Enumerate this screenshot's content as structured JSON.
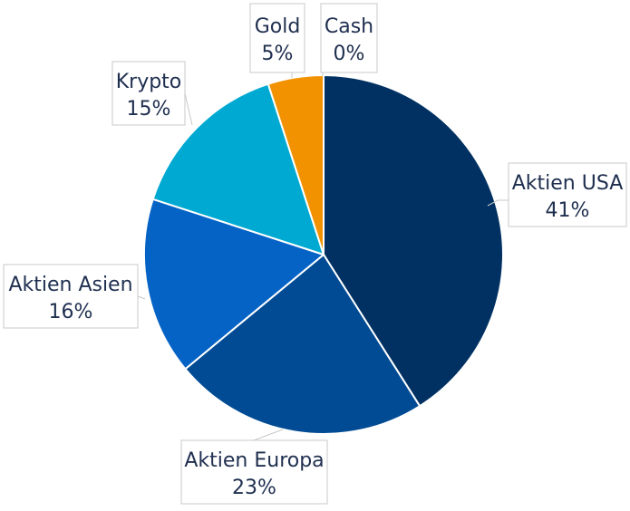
{
  "chart_data": {
    "type": "pie",
    "title": "",
    "start_angle_deg": 0,
    "direction": "clockwise",
    "slices": [
      {
        "label": "Aktien USA",
        "value": 41,
        "value_label": "41%",
        "color": "#003162"
      },
      {
        "label": "Aktien Europa",
        "value": 23,
        "value_label": "23%",
        "color": "#004b93"
      },
      {
        "label": "Aktien Asien",
        "value": 16,
        "value_label": "16%",
        "color": "#0563c6"
      },
      {
        "label": "Krypto",
        "value": 15,
        "value_label": "15%",
        "color": "#00a9d1"
      },
      {
        "label": "Gold",
        "value": 5,
        "value_label": "5%",
        "color": "#f39200"
      },
      {
        "label": "Cash",
        "value": 0,
        "value_label": "0%",
        "color": "#7f7f7f"
      }
    ],
    "legend": "none",
    "data_labels": "outside-callouts"
  }
}
